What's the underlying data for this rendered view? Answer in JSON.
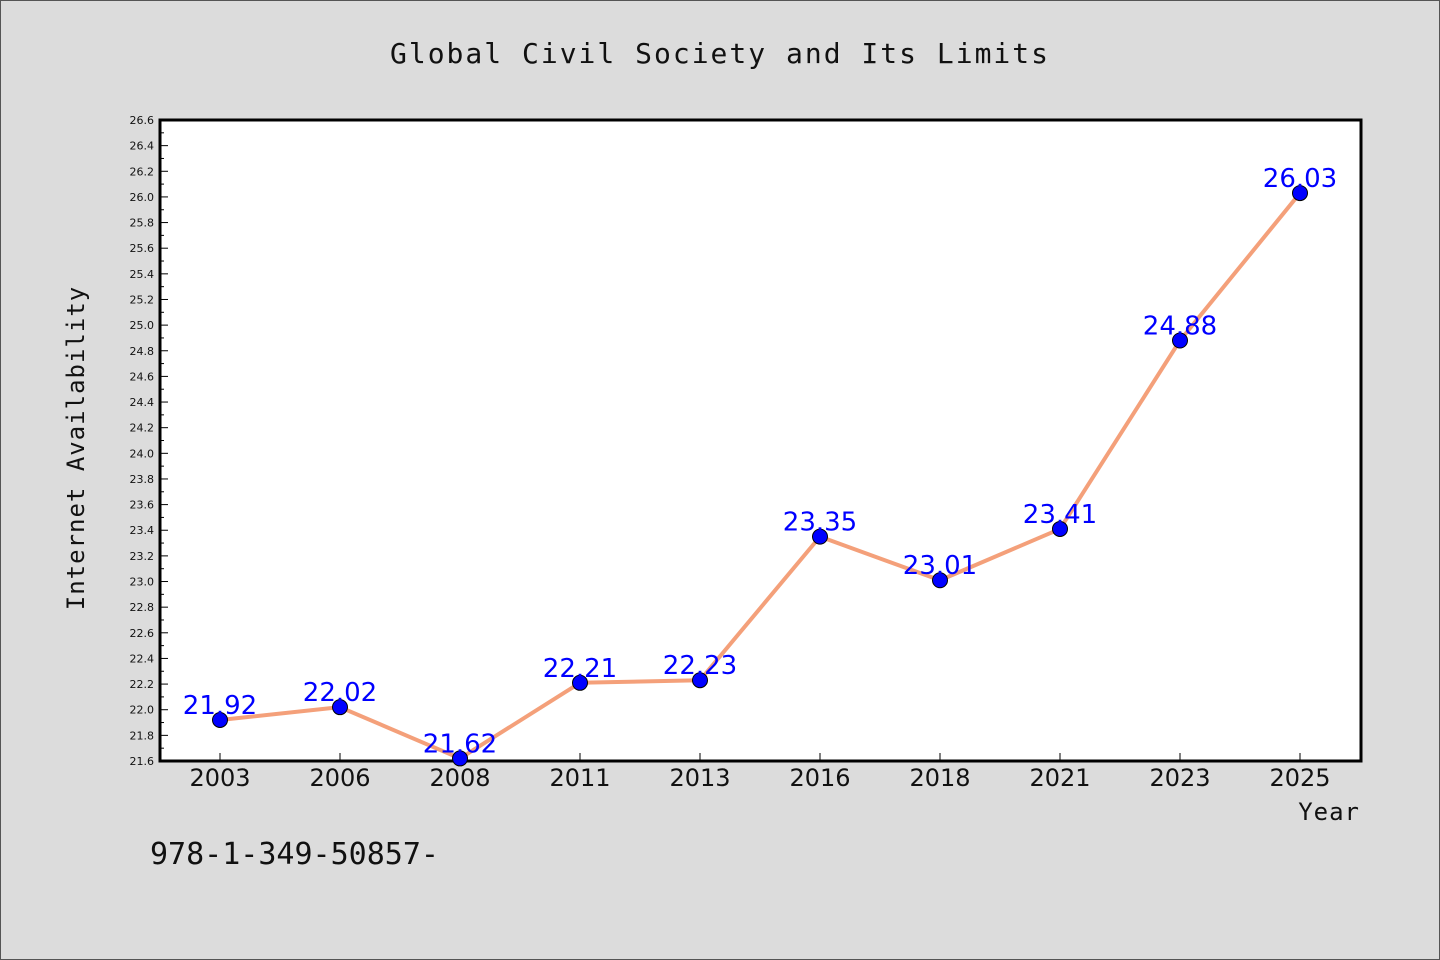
{
  "chart_data": {
    "type": "line",
    "title": "Global Civil Society and Its Limits",
    "xlabel": "Year",
    "ylabel": "Internet Availability",
    "categories": [
      "2003",
      "2006",
      "2008",
      "2011",
      "2013",
      "2016",
      "2018",
      "2021",
      "2023",
      "2025"
    ],
    "series": [
      {
        "values": [
          21.92,
          22.02,
          21.62,
          22.21,
          22.23,
          23.35,
          23.01,
          23.41,
          24.88,
          26.03
        ],
        "data_labels": [
          "21.92",
          "22.02",
          "21.62",
          "22.21",
          "22.23",
          "23.35",
          "23.01",
          "23.41",
          "24.88",
          "26.03"
        ],
        "line_color": "#f4a07a",
        "marker_color": "#0000ff"
      }
    ],
    "ylim": [
      21.6,
      26.6
    ],
    "yticks": [
      "21.6",
      "21.8",
      "22.0",
      "22.2",
      "22.4",
      "22.6",
      "22.8",
      "23.0",
      "23.2",
      "23.4",
      "23.6",
      "23.8",
      "24.0",
      "24.2",
      "24.4",
      "24.6",
      "24.8",
      "25.0",
      "25.2",
      "25.4",
      "25.6",
      "25.8",
      "26.0",
      "26.2",
      "26.4",
      "26.6"
    ],
    "grid": false,
    "legend": "none"
  },
  "footer_text": "978-1-349-50857-",
  "colors": {
    "background": "#dcdcdc",
    "plot_background": "#ffffff",
    "line": "#f4a07a",
    "marker": "#0000ff",
    "data_label": "#0000ff"
  }
}
